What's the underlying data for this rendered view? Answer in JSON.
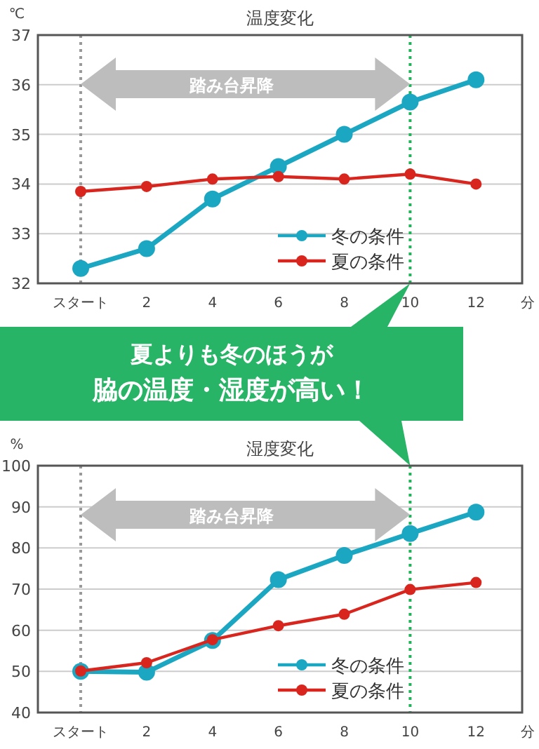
{
  "chart_data": [
    {
      "type": "line",
      "title": "温度変化",
      "ylabel": "℃",
      "xlabel": "分",
      "x": [
        0,
        2,
        4,
        6,
        8,
        10,
        12
      ],
      "series": [
        {
          "name": "冬の条件",
          "color": "#1ba6c2",
          "values": [
            32.3,
            32.7,
            33.7,
            34.35,
            35.0,
            35.65,
            36.1
          ]
        },
        {
          "name": "夏の条件",
          "color": "#d8261f",
          "values": [
            33.85,
            33.95,
            34.1,
            34.15,
            34.1,
            34.2,
            34.0
          ]
        }
      ],
      "xlim": [
        -1.3,
        13.4
      ],
      "xticks": [
        {
          "value": 0,
          "label": "スタート"
        },
        2,
        4,
        6,
        8,
        10,
        12
      ],
      "ylim": [
        32,
        37
      ],
      "yticks": [
        32,
        33,
        34,
        35,
        36,
        37
      ],
      "grid": "y",
      "legend": "bottom right",
      "marker": "circle",
      "ref_lines": [
        {
          "axis": "x",
          "value": 0,
          "color": "#999999",
          "line_style": "dotted"
        },
        {
          "axis": "x",
          "value": 10,
          "color": "#22b35a",
          "line_style": "dotted"
        }
      ],
      "annotations": [
        "踏み台昇降",
        "夏よりも冬のほうが",
        "脇の温度・湿度が高い！"
      ]
    },
    {
      "type": "line",
      "title": "湿度変化",
      "ylabel": "%",
      "xlabel": "分",
      "x": [
        0,
        2,
        4,
        6,
        8,
        10,
        12
      ],
      "series": [
        {
          "name": "冬の条件",
          "color": "#1ba6c2",
          "values": [
            50,
            49.8,
            57.5,
            72.3,
            78.2,
            83.5,
            88.7
          ]
        },
        {
          "name": "夏の条件",
          "color": "#d8261f",
          "values": [
            50.1,
            52.1,
            57.7,
            61.1,
            63.9,
            69.9,
            71.6
          ]
        }
      ],
      "xlim": [
        -1.3,
        13.4
      ],
      "xticks": [
        {
          "value": 0,
          "label": "スタート"
        },
        2,
        4,
        6,
        8,
        10,
        12
      ],
      "ylim": [
        40,
        100
      ],
      "yticks": [
        40,
        50,
        60,
        70,
        80,
        90,
        100
      ],
      "grid": "y",
      "legend": "bottom right",
      "marker": "circle",
      "ref_lines": [
        {
          "axis": "x",
          "value": 0,
          "color": "#999999",
          "line_style": "dotted"
        },
        {
          "axis": "x",
          "value": 10,
          "color": "#22b35a",
          "line_style": "dotted"
        }
      ],
      "annotations": [
        "踏み台昇降"
      ]
    }
  ]
}
